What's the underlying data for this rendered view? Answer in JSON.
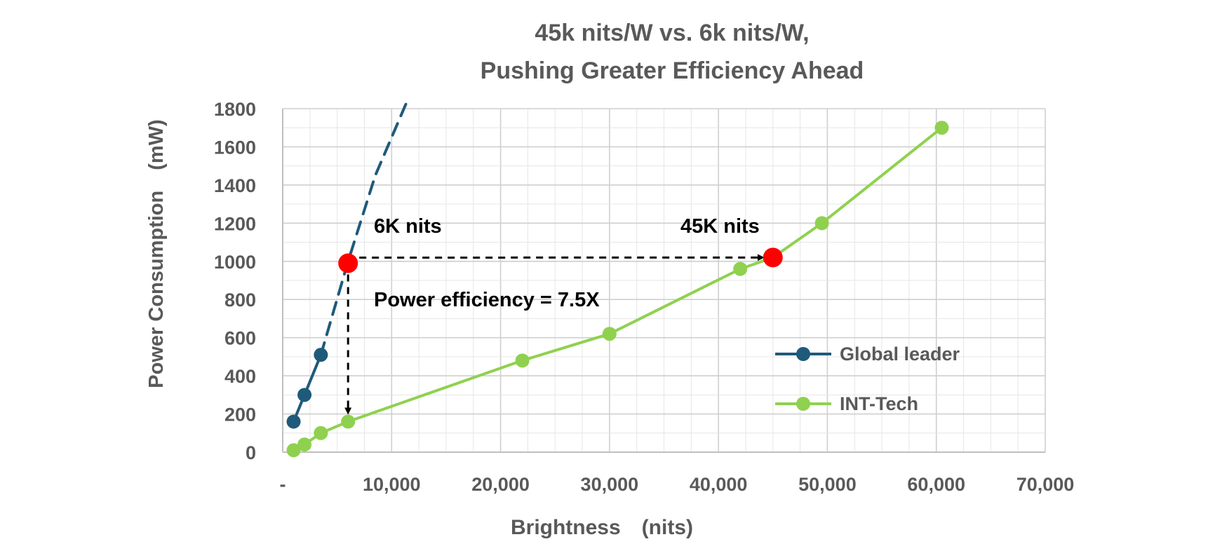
{
  "chart_data": {
    "type": "line",
    "title_lines": [
      "45k nits/W vs. 6k nits/W,",
      "Pushing Greater Efficiency Ahead"
    ],
    "xlabel": "Brightness　(nits)",
    "ylabel": "Power Consumption　(mW)",
    "xlim": [
      0,
      70000
    ],
    "ylim": [
      0,
      1800
    ],
    "x_ticks": [
      0,
      10000,
      20000,
      30000,
      40000,
      50000,
      60000,
      70000
    ],
    "x_tick_labels": [
      "-",
      "10,000",
      "20,000",
      "30,000",
      "40,000",
      "50,000",
      "60,000",
      "70,000"
    ],
    "y_ticks": [
      0,
      200,
      400,
      600,
      800,
      1000,
      1200,
      1400,
      1600,
      1800
    ],
    "y_tick_labels": [
      "0",
      "200",
      "400",
      "600",
      "800",
      "1000",
      "1200",
      "1400",
      "1600",
      "1800"
    ],
    "x_minor_step": 2500,
    "y_minor_step": 100,
    "grid": true,
    "legend_position": "right",
    "series": [
      {
        "name": "Global leader",
        "color": "#1f5a7a",
        "x": [
          1000,
          2000,
          3500
        ],
        "y": [
          160,
          300,
          510
        ],
        "extrapolation": {
          "x": [
            3500,
            6000,
            8500,
            11500
          ],
          "y": [
            510,
            1000,
            1450,
            1850
          ],
          "style": "dashed"
        }
      },
      {
        "name": "INT-Tech",
        "color": "#8fd14f",
        "x": [
          1000,
          2000,
          3500,
          6000,
          22000,
          30000,
          42000,
          45000,
          49500,
          60500
        ],
        "y": [
          10,
          40,
          100,
          160,
          480,
          620,
          960,
          1020,
          1200,
          1700
        ]
      }
    ],
    "highlight_points": [
      {
        "x": 6000,
        "y": 990,
        "label": "6K nits",
        "color": "#ff0000"
      },
      {
        "x": 45000,
        "y": 1020,
        "label": "45K nits",
        "color": "#ff0000"
      }
    ],
    "annotations": {
      "efficiency": "Power efficiency = 7.5X",
      "h_arrow": {
        "from": [
          6000,
          990
        ],
        "to": [
          45000,
          1020
        ]
      },
      "v_arrow": {
        "from": [
          6000,
          990
        ],
        "to": [
          6000,
          160
        ]
      }
    }
  }
}
